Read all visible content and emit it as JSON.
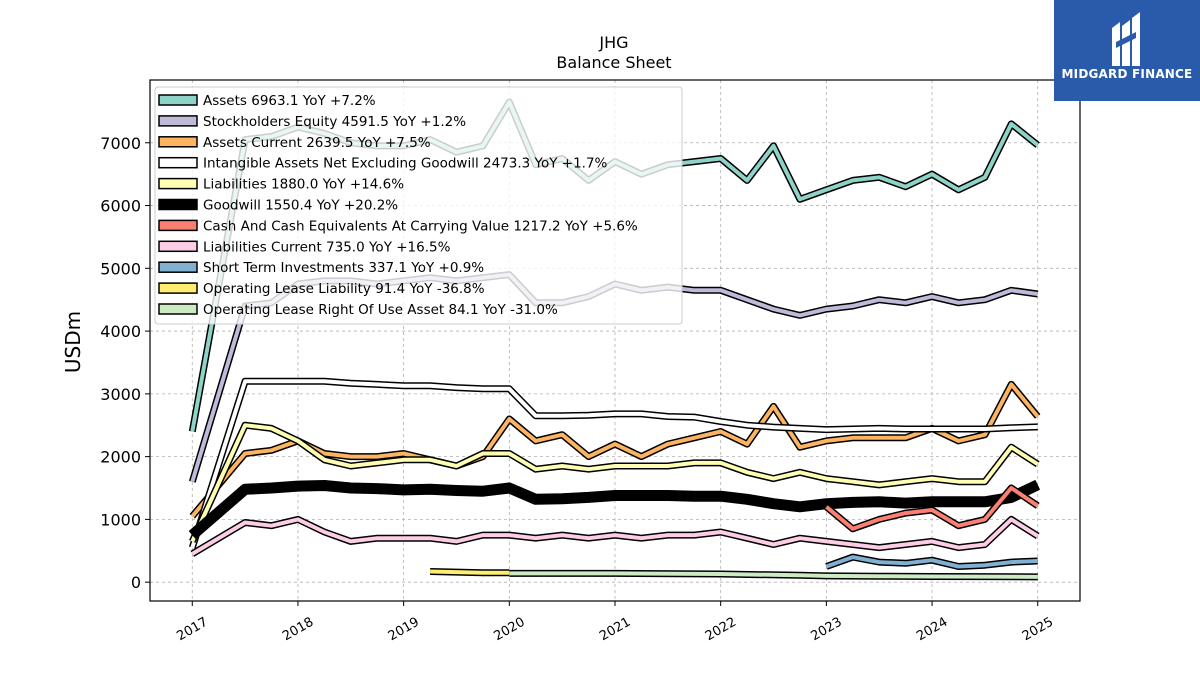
{
  "chart_data": {
    "type": "line",
    "title": "JHG",
    "subtitle": "Balance  Sheet",
    "ylabel": "USDm",
    "xlabel": "",
    "ylim": [
      -300,
      8000
    ],
    "xlim": [
      2016.6,
      2025.4
    ],
    "yticks": [
      0,
      1000,
      2000,
      3000,
      4000,
      5000,
      6000,
      7000
    ],
    "xticks": [
      "2017",
      "2018",
      "2019",
      "2020",
      "2021",
      "2022",
      "2023",
      "2024",
      "2025"
    ],
    "grid": true,
    "legend_position": "top-left",
    "series": [
      {
        "name": "Assets  6963.1 YoY +7.2%",
        "color": "#8dd3c7",
        "lw": 4,
        "x": [
          2017.0,
          2017.5,
          2017.75,
          2018.0,
          2018.25,
          2018.5,
          2018.75,
          2019.0,
          2019.25,
          2019.5,
          2019.75,
          2020.0,
          2020.25,
          2020.5,
          2020.75,
          2021.0,
          2021.25,
          2021.5,
          2021.75,
          2022.0,
          2022.25,
          2022.5,
          2022.75,
          2023.0,
          2023.25,
          2023.5,
          2023.75,
          2024.0,
          2024.25,
          2024.5,
          2024.75,
          2025.0
        ],
        "y": [
          2400,
          7050,
          7100,
          7250,
          7150,
          7000,
          6950,
          6950,
          7050,
          6850,
          6950,
          7650,
          6650,
          6750,
          6400,
          6700,
          6500,
          6650,
          6700,
          6750,
          6400,
          6950,
          6100,
          6250,
          6400,
          6450,
          6300,
          6500,
          6250,
          6450,
          7300,
          6963.1
        ]
      },
      {
        "name": "Stockholders Equity  4591.5 YoY +1.2%",
        "color": "#bebada",
        "lw": 4,
        "x": [
          2017.0,
          2017.5,
          2017.75,
          2018.0,
          2018.25,
          2018.5,
          2018.75,
          2019.0,
          2019.25,
          2019.5,
          2019.75,
          2020.0,
          2020.25,
          2020.5,
          2020.75,
          2021.0,
          2021.25,
          2021.5,
          2021.75,
          2022.0,
          2022.25,
          2022.5,
          2022.75,
          2023.0,
          2023.25,
          2023.5,
          2023.75,
          2024.0,
          2024.25,
          2024.5,
          2024.75,
          2025.0
        ],
        "y": [
          1600,
          4400,
          4450,
          4750,
          4800,
          4800,
          4750,
          4800,
          4850,
          4800,
          4850,
          4900,
          4450,
          4450,
          4550,
          4750,
          4650,
          4700,
          4650,
          4650,
          4500,
          4350,
          4250,
          4350,
          4400,
          4500,
          4450,
          4550,
          4450,
          4500,
          4650,
          4591.5
        ]
      },
      {
        "name": "Assets Current  2639.5 YoY +7.5%",
        "color": "#fdb462",
        "lw": 4,
        "x": [
          2017.0,
          2017.5,
          2017.75,
          2018.0,
          2018.25,
          2018.5,
          2018.75,
          2019.0,
          2019.25,
          2019.5,
          2019.75,
          2020.0,
          2020.25,
          2020.5,
          2020.75,
          2021.0,
          2021.25,
          2021.5,
          2021.75,
          2022.0,
          2022.25,
          2022.5,
          2022.75,
          2023.0,
          2023.25,
          2023.5,
          2023.75,
          2024.0,
          2024.25,
          2024.5,
          2024.75,
          2025.0
        ],
        "y": [
          1050,
          2050,
          2100,
          2250,
          2050,
          2000,
          2000,
          2050,
          1950,
          1850,
          2000,
          2600,
          2250,
          2350,
          2000,
          2200,
          2000,
          2200,
          2300,
          2400,
          2200,
          2800,
          2150,
          2250,
          2300,
          2300,
          2300,
          2450,
          2250,
          2350,
          3150,
          2639.5
        ]
      },
      {
        "name": "Intangible Assets Net Excluding Goodwill  2473.3 YoY +1.7%",
        "color": "#ffffff",
        "lw": 4,
        "x": [
          2017.0,
          2017.5,
          2017.75,
          2018.0,
          2018.25,
          2018.5,
          2018.75,
          2019.0,
          2019.25,
          2019.5,
          2019.75,
          2020.0,
          2020.25,
          2020.5,
          2020.75,
          2021.0,
          2021.25,
          2021.5,
          2021.75,
          2022.0,
          2022.25,
          2022.5,
          2022.75,
          2023.0,
          2023.25,
          2023.5,
          2023.75,
          2024.0,
          2024.25,
          2024.5,
          2024.75,
          2025.0
        ],
        "y": [
          550,
          3200,
          3200,
          3200,
          3200,
          3170,
          3150,
          3130,
          3130,
          3100,
          3080,
          3080,
          2650,
          2650,
          2660,
          2680,
          2680,
          2640,
          2630,
          2560,
          2500,
          2470,
          2450,
          2430,
          2440,
          2450,
          2440,
          2440,
          2440,
          2440,
          2460,
          2473.3
        ]
      },
      {
        "name": "Liabilities  1880.0 YoY +14.6%",
        "color": "#ffffb3",
        "lw": 4,
        "x": [
          2017.0,
          2017.5,
          2017.75,
          2018.0,
          2018.25,
          2018.5,
          2018.75,
          2019.0,
          2019.25,
          2019.5,
          2019.75,
          2020.0,
          2020.25,
          2020.5,
          2020.75,
          2021.0,
          2021.25,
          2021.5,
          2021.75,
          2022.0,
          2022.25,
          2022.5,
          2022.75,
          2023.0,
          2023.25,
          2023.5,
          2023.75,
          2024.0,
          2024.25,
          2024.5,
          2024.75,
          2025.0
        ],
        "y": [
          650,
          2500,
          2450,
          2250,
          1950,
          1850,
          1900,
          1950,
          1950,
          1850,
          2050,
          2050,
          1800,
          1850,
          1800,
          1850,
          1850,
          1850,
          1900,
          1900,
          1750,
          1650,
          1750,
          1650,
          1600,
          1550,
          1600,
          1650,
          1600,
          1600,
          2150,
          1880.0
        ]
      },
      {
        "name": "Goodwill  1550.4 YoY +20.2%",
        "color": "#000000",
        "lw": 8,
        "x": [
          2017.0,
          2017.5,
          2017.75,
          2018.0,
          2018.25,
          2018.5,
          2018.75,
          2019.0,
          2019.25,
          2019.5,
          2019.75,
          2020.0,
          2020.25,
          2020.5,
          2020.75,
          2021.0,
          2021.25,
          2021.5,
          2021.75,
          2022.0,
          2022.25,
          2022.5,
          2022.75,
          2023.0,
          2023.25,
          2023.5,
          2023.75,
          2024.0,
          2024.25,
          2024.5,
          2024.75,
          2025.0
        ],
        "y": [
          750,
          1480,
          1500,
          1530,
          1540,
          1500,
          1490,
          1470,
          1480,
          1460,
          1450,
          1500,
          1320,
          1330,
          1350,
          1380,
          1380,
          1380,
          1370,
          1370,
          1320,
          1250,
          1200,
          1250,
          1270,
          1280,
          1260,
          1280,
          1280,
          1280,
          1350,
          1550.4
        ]
      },
      {
        "name": "Cash And Cash Equivalents At Carrying Value  1217.2 YoY +5.6%",
        "color": "#fb8072",
        "lw": 4,
        "x": [
          2023.0,
          2023.25,
          2023.5,
          2023.75,
          2024.0,
          2024.25,
          2024.5,
          2024.75,
          2025.0
        ],
        "y": [
          1200,
          850,
          1000,
          1100,
          1150,
          900,
          1000,
          1500,
          1217.2
        ]
      },
      {
        "name": "Liabilities Current  735.0 YoY +16.5%",
        "color": "#fccde5",
        "lw": 4,
        "x": [
          2017.0,
          2017.5,
          2017.75,
          2018.0,
          2018.25,
          2018.5,
          2018.75,
          2019.0,
          2019.25,
          2019.5,
          2019.75,
          2020.0,
          2020.25,
          2020.5,
          2020.75,
          2021.0,
          2021.25,
          2021.5,
          2021.75,
          2022.0,
          2022.25,
          2022.5,
          2022.75,
          2023.0,
          2023.25,
          2023.5,
          2023.75,
          2024.0,
          2024.25,
          2024.5,
          2024.75,
          2025.0
        ],
        "y": [
          450,
          950,
          900,
          1000,
          800,
          650,
          700,
          700,
          700,
          650,
          750,
          750,
          700,
          750,
          700,
          750,
          700,
          750,
          750,
          800,
          700,
          600,
          700,
          650,
          600,
          550,
          600,
          650,
          550,
          600,
          1000,
          735.0
        ]
      },
      {
        "name": "Short Term Investments  337.1 YoY +0.9%",
        "color": "#80b1d3",
        "lw": 4,
        "x": [
          2023.0,
          2023.25,
          2023.5,
          2023.75,
          2024.0,
          2024.25,
          2024.5,
          2024.75,
          2025.0
        ],
        "y": [
          250,
          400,
          320,
          300,
          350,
          250,
          270,
          320,
          337.1
        ]
      },
      {
        "name": "Operating Lease Liability  91.4 YoY -36.8%",
        "color": "#ffed6f",
        "lw": 4,
        "x": [
          2019.25,
          2019.5,
          2019.75,
          2020.0
        ],
        "y": [
          170,
          160,
          150,
          150
        ]
      },
      {
        "name": "Operating Lease Right Of Use Asset  84.1 YoY -31.0%",
        "color": "#ccebc5",
        "lw": 4,
        "x": [
          2020.0,
          2021.0,
          2022.0,
          2022.75,
          2023.0,
          2023.5,
          2024.0,
          2024.5,
          2025.0
        ],
        "y": [
          140,
          140,
          130,
          110,
          100,
          95,
          90,
          88,
          84.1
        ]
      }
    ]
  },
  "logo": {
    "text": "MIDGARD FINANCE"
  }
}
